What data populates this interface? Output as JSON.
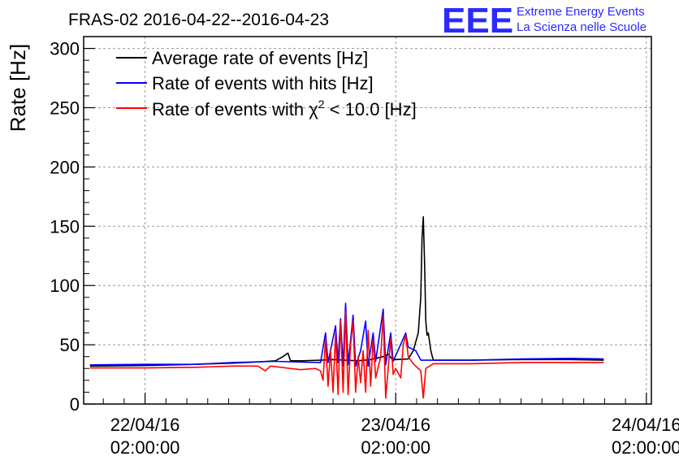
{
  "header": {
    "title": "FRAS-02 2016-04-22--2016-04-23",
    "logo_text": "EEE",
    "logo_line1": "Extreme Energy Events",
    "logo_line2": "La Scienza nelle Scuole"
  },
  "colors": {
    "avg": "#000000",
    "hits": "#0000ff",
    "chi2": "#ff0000",
    "logo": "#2a2aff",
    "grid": "#9a9a9a"
  },
  "chart_data": {
    "type": "line",
    "title": "FRAS-02 2016-04-22--2016-04-23",
    "ylabel": "Rate [Hz]",
    "xlabel": "",
    "ylim": [
      0,
      310
    ],
    "xlim": [
      -0.245,
      2.02
    ],
    "y_ticks": [
      0,
      50,
      100,
      150,
      200,
      250,
      300
    ],
    "x_ticks": [
      {
        "value": 0,
        "date": "22/04/16",
        "time": "02:00:00"
      },
      {
        "value": 1,
        "date": "23/04/16",
        "time": "02:00:00"
      },
      {
        "value": 2,
        "date": "24/04/16",
        "time": "02:00:00"
      }
    ],
    "grid": true,
    "legend_position": "top-left",
    "series": [
      {
        "name": "Average rate of events [Hz]",
        "color": "#000000",
        "points": [
          [
            -0.22,
            32
          ],
          [
            0.0,
            32.5
          ],
          [
            0.2,
            33.5
          ],
          [
            0.35,
            34.5
          ],
          [
            0.45,
            35.5
          ],
          [
            0.52,
            36.5
          ],
          [
            0.55,
            40
          ],
          [
            0.57,
            43
          ],
          [
            0.58,
            36.5
          ],
          [
            0.63,
            36.5
          ],
          [
            0.7,
            37
          ],
          [
            0.75,
            37.5
          ],
          [
            0.8,
            37
          ],
          [
            0.85,
            36.5
          ],
          [
            0.9,
            37.5
          ],
          [
            0.95,
            40
          ],
          [
            0.97,
            42
          ],
          [
            0.985,
            38
          ],
          [
            1.0,
            37.5
          ],
          [
            1.05,
            38
          ],
          [
            1.07,
            45
          ],
          [
            1.09,
            60
          ],
          [
            1.1,
            90
          ],
          [
            1.105,
            140
          ],
          [
            1.11,
            158
          ],
          [
            1.115,
            120
          ],
          [
            1.12,
            70
          ],
          [
            1.125,
            58
          ],
          [
            1.13,
            60
          ],
          [
            1.14,
            45
          ],
          [
            1.15,
            37
          ],
          [
            1.3,
            37
          ],
          [
            1.5,
            37.5
          ],
          [
            1.7,
            37.5
          ],
          [
            1.83,
            37
          ]
        ]
      },
      {
        "name": "Rate of events with hits [Hz]",
        "color": "#0000ff",
        "points": [
          [
            -0.22,
            33
          ],
          [
            0.0,
            33.5
          ],
          [
            0.2,
            33.5
          ],
          [
            0.35,
            35
          ],
          [
            0.52,
            36
          ],
          [
            0.7,
            35
          ],
          [
            0.72,
            60
          ],
          [
            0.73,
            35
          ],
          [
            0.76,
            66
          ],
          [
            0.77,
            35
          ],
          [
            0.78,
            72
          ],
          [
            0.79,
            32
          ],
          [
            0.8,
            85
          ],
          [
            0.81,
            33
          ],
          [
            0.83,
            75
          ],
          [
            0.84,
            32
          ],
          [
            0.86,
            45
          ],
          [
            0.88,
            70
          ],
          [
            0.89,
            32
          ],
          [
            0.91,
            60
          ],
          [
            0.92,
            36
          ],
          [
            0.95,
            80
          ],
          [
            0.96,
            33
          ],
          [
            0.98,
            60
          ],
          [
            0.99,
            36
          ],
          [
            1.04,
            60
          ],
          [
            1.05,
            48
          ],
          [
            1.08,
            45
          ],
          [
            1.1,
            37
          ],
          [
            1.3,
            37
          ],
          [
            1.5,
            38
          ],
          [
            1.7,
            38.5
          ],
          [
            1.83,
            38
          ]
        ]
      },
      {
        "name": "Rate of events with χ2 < 10.0 [Hz]",
        "color": "#ff0000",
        "points": [
          [
            -0.22,
            30.5
          ],
          [
            0.0,
            30.5
          ],
          [
            0.2,
            31
          ],
          [
            0.35,
            32
          ],
          [
            0.45,
            32
          ],
          [
            0.48,
            28
          ],
          [
            0.5,
            32
          ],
          [
            0.58,
            30
          ],
          [
            0.62,
            29
          ],
          [
            0.68,
            30
          ],
          [
            0.7,
            28
          ],
          [
            0.71,
            20
          ],
          [
            0.72,
            55
          ],
          [
            0.73,
            15
          ],
          [
            0.74,
            45
          ],
          [
            0.75,
            10
          ],
          [
            0.76,
            60
          ],
          [
            0.77,
            8
          ],
          [
            0.78,
            70
          ],
          [
            0.79,
            10
          ],
          [
            0.8,
            78
          ],
          [
            0.81,
            8
          ],
          [
            0.82,
            50
          ],
          [
            0.83,
            70
          ],
          [
            0.84,
            10
          ],
          [
            0.85,
            40
          ],
          [
            0.86,
            18
          ],
          [
            0.87,
            45
          ],
          [
            0.88,
            10
          ],
          [
            0.89,
            62
          ],
          [
            0.9,
            15
          ],
          [
            0.91,
            55
          ],
          [
            0.92,
            22
          ],
          [
            0.94,
            40
          ],
          [
            0.95,
            75
          ],
          [
            0.96,
            5
          ],
          [
            0.97,
            30
          ],
          [
            0.98,
            55
          ],
          [
            0.99,
            25
          ],
          [
            1.0,
            30
          ],
          [
            1.02,
            22
          ],
          [
            1.03,
            50
          ],
          [
            1.04,
            58
          ],
          [
            1.05,
            40
          ],
          [
            1.07,
            34
          ],
          [
            1.1,
            28
          ],
          [
            1.11,
            5
          ],
          [
            1.12,
            30
          ],
          [
            1.15,
            34
          ],
          [
            1.3,
            34
          ],
          [
            1.5,
            35
          ],
          [
            1.7,
            35
          ],
          [
            1.83,
            35
          ]
        ]
      }
    ]
  }
}
